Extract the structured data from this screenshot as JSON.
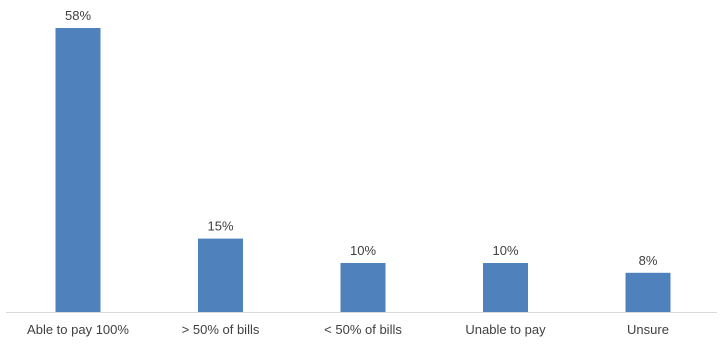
{
  "chart_data": {
    "type": "bar",
    "categories": [
      "Able to pay 100%",
      "> 50% of bills",
      "< 50% of bills",
      "Unable to pay",
      "Unsure"
    ],
    "values": [
      58,
      15,
      10,
      10,
      8
    ],
    "data_labels": [
      "58%",
      "15%",
      "10%",
      "10%",
      "8%"
    ],
    "unit": "%",
    "title": "",
    "xlabel": "",
    "ylabel": "",
    "ylim": [
      0,
      58
    ],
    "grid": false,
    "legend": "none",
    "bar_color": "#4f81bd",
    "axis_color": "#d9d9d9"
  }
}
